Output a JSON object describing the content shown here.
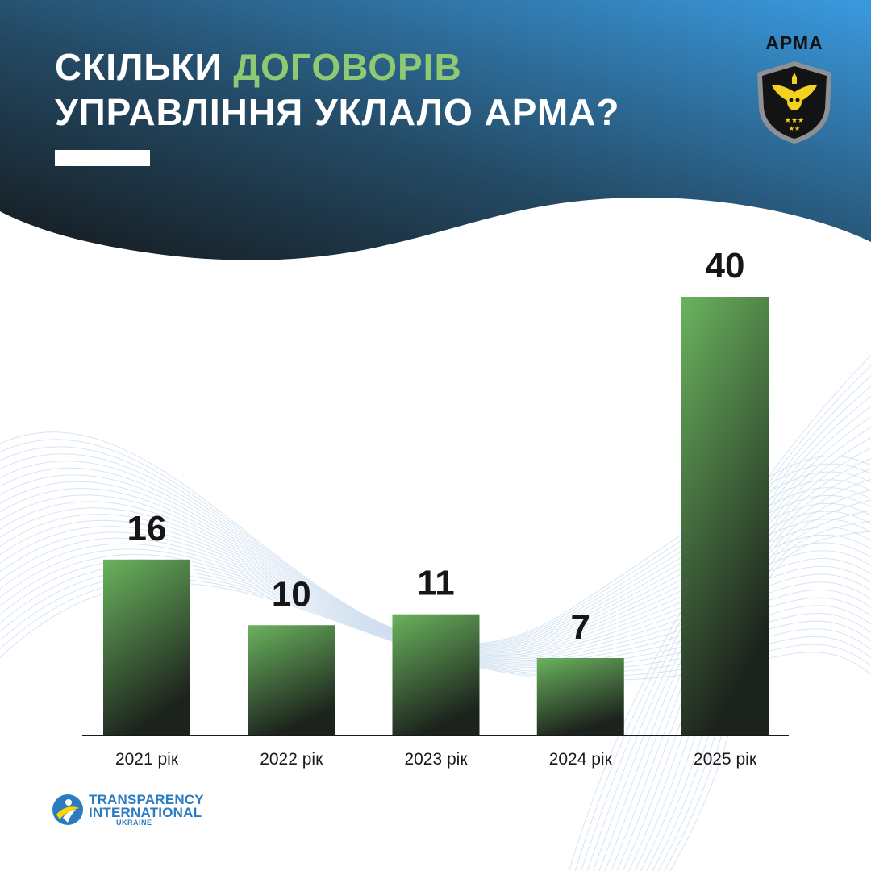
{
  "header": {
    "title_part1": "СКІЛЬКИ ",
    "title_accent": "ДОГОВОРІВ",
    "title_line2": "УПРАВЛІННЯ УКЛАЛО АРМА?"
  },
  "logos": {
    "arma": "АРМА",
    "ti_line1": "TRANSPARENCY",
    "ti_line2": "INTERNATIONAL",
    "ti_line3": "UKRAINE"
  },
  "colors": {
    "header_dark": "#1b2326",
    "header_blue": "#3a97dc",
    "accent_green": "#8fca72",
    "bar_top": "#6ab35e",
    "bar_bottom": "#1c221c"
  },
  "chart_data": {
    "type": "bar",
    "categories": [
      "2021 рік",
      "2022 рік",
      "2023 рік",
      "2024 рік",
      "2025 рік"
    ],
    "values": [
      16,
      10,
      11,
      7,
      40
    ],
    "data_labels": [
      "16",
      "10",
      "11",
      "7",
      "40"
    ],
    "title": "СКІЛЬКИ ДОГОВОРІВ УПРАВЛІННЯ УКЛАЛО АРМА?",
    "xlabel": "",
    "ylabel": "",
    "ylim": [
      0,
      40
    ],
    "grid": false,
    "legend": "none"
  }
}
